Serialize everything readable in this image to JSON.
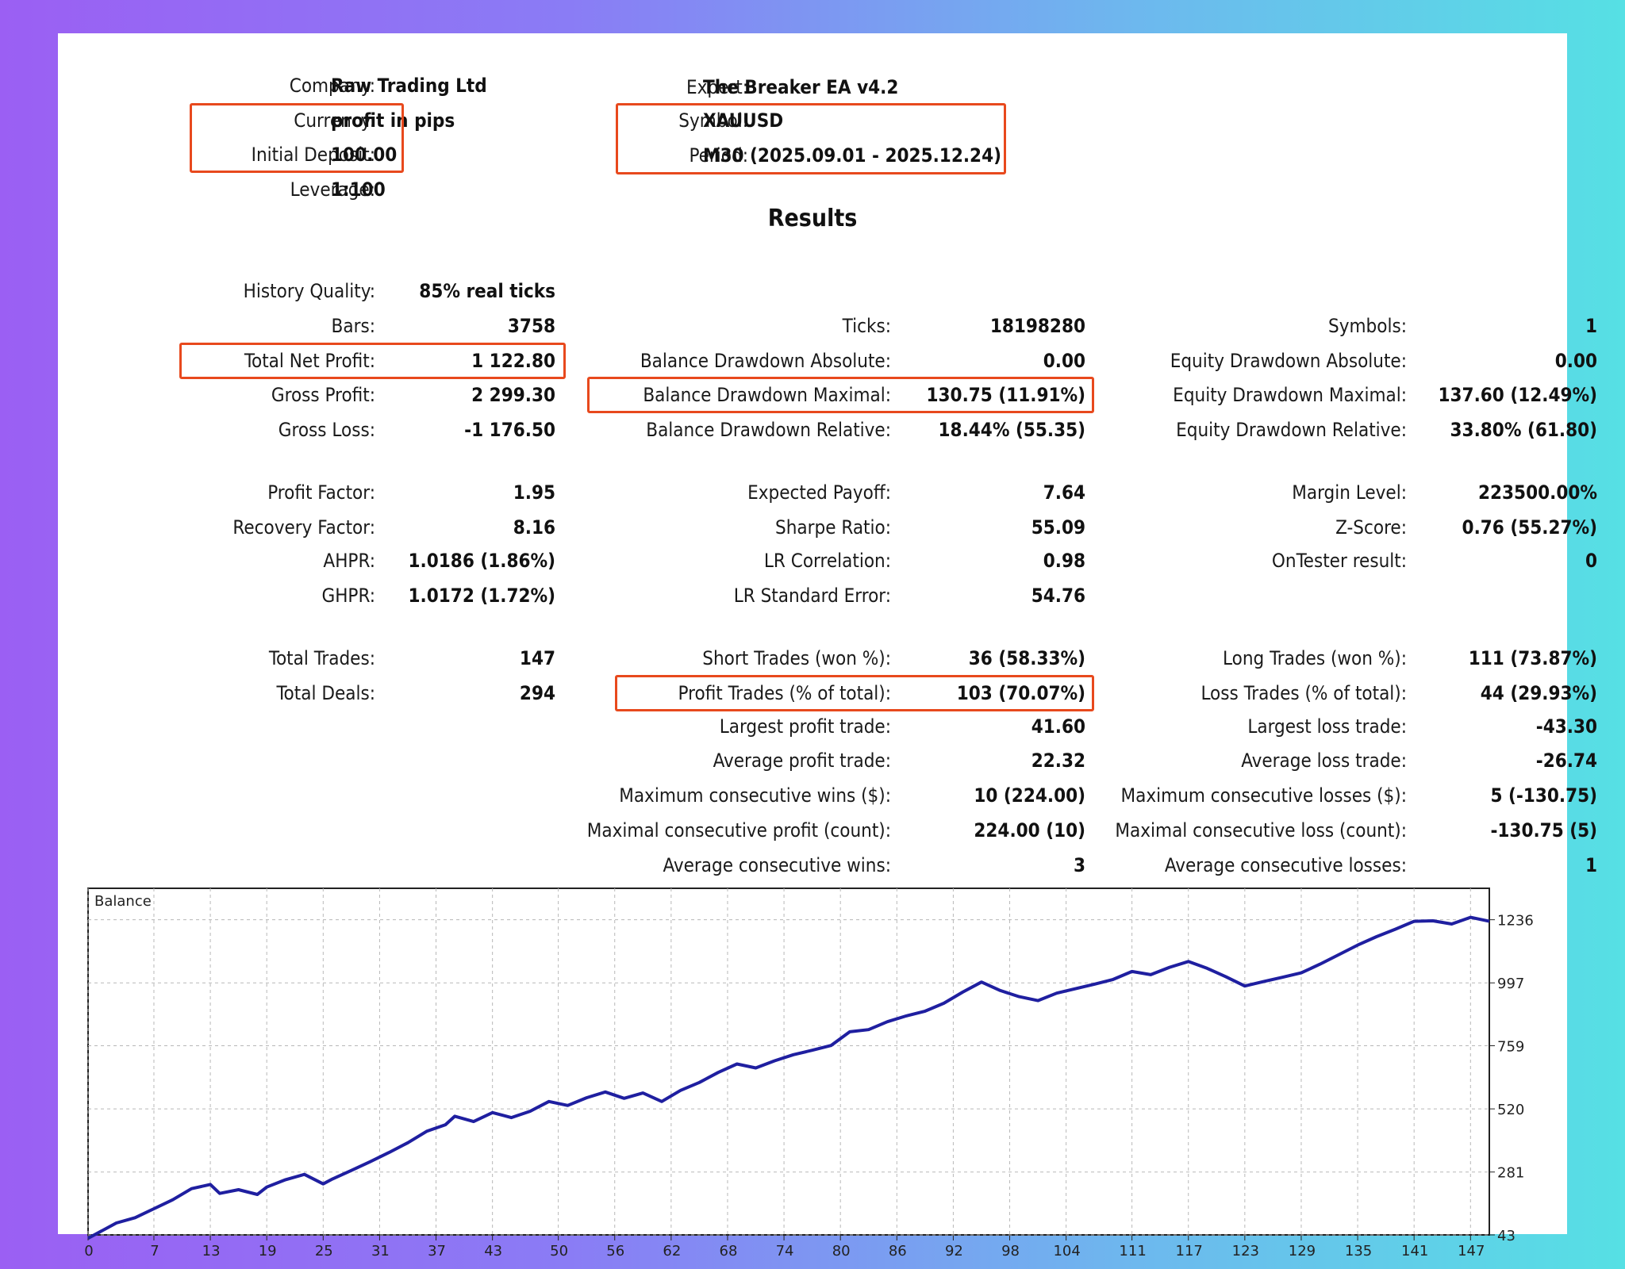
{
  "header": {
    "company": {
      "label": "Company:",
      "value": "Raw Trading Ltd"
    },
    "currency": {
      "label": "Currency:",
      "value": "profit in pips"
    },
    "deposit": {
      "label": "Initial Deposit:",
      "value": "100.00"
    },
    "leverage": {
      "label": "Leverage:",
      "value": "1:100"
    },
    "expert": {
      "label": "Expert:",
      "value": "The Breaker EA v4.2"
    },
    "symbol": {
      "label": "Symbol:",
      "value": "XAUUSD"
    },
    "period": {
      "label": "Period:",
      "value": "M30 (2025.09.01 - 2025.12.24)"
    }
  },
  "results_title": "Results",
  "col1": [
    {
      "label": "History Quality:",
      "value": "85% real ticks"
    },
    {
      "label": "Bars:",
      "value": "3758"
    },
    {
      "label": "Total Net Profit:",
      "value": "1 122.80"
    },
    {
      "label": "Gross Profit:",
      "value": "2 299.30"
    },
    {
      "label": "Gross Loss:",
      "value": "-1 176.50"
    },
    {
      "label": "Profit Factor:",
      "value": "1.95"
    },
    {
      "label": "Recovery Factor:",
      "value": "8.16"
    },
    {
      "label": "AHPR:",
      "value": "1.0186 (1.86%)"
    },
    {
      "label": "GHPR:",
      "value": "1.0172 (1.72%)"
    },
    {
      "label": "Total Trades:",
      "value": "147"
    },
    {
      "label": "Total Deals:",
      "value": "294"
    }
  ],
  "col2": [
    {
      "label": "Ticks:",
      "value": "18198280"
    },
    {
      "label": "Balance Drawdown Absolute:",
      "value": "0.00"
    },
    {
      "label": "Balance Drawdown Maximal:",
      "value": "130.75 (11.91%)"
    },
    {
      "label": "Balance Drawdown Relative:",
      "value": "18.44% (55.35)"
    },
    {
      "label": "Expected Payoff:",
      "value": "7.64"
    },
    {
      "label": "Sharpe Ratio:",
      "value": "55.09"
    },
    {
      "label": "LR Correlation:",
      "value": "0.98"
    },
    {
      "label": "LR Standard Error:",
      "value": "54.76"
    },
    {
      "label": "Short Trades (won %):",
      "value": "36 (58.33%)"
    },
    {
      "label": "Profit Trades (% of total):",
      "value": "103 (70.07%)"
    },
    {
      "label": "Largest profit trade:",
      "value": "41.60"
    },
    {
      "label": "Average profit trade:",
      "value": "22.32"
    },
    {
      "label": "Maximum consecutive wins ($):",
      "value": "10 (224.00)"
    },
    {
      "label": "Maximal consecutive profit (count):",
      "value": "224.00 (10)"
    },
    {
      "label": "Average consecutive wins:",
      "value": "3"
    }
  ],
  "col3": [
    {
      "label": "Symbols:",
      "value": "1"
    },
    {
      "label": "Equity Drawdown Absolute:",
      "value": "0.00"
    },
    {
      "label": "Equity Drawdown Maximal:",
      "value": "137.60 (12.49%)"
    },
    {
      "label": "Equity Drawdown Relative:",
      "value": "33.80% (61.80)"
    },
    {
      "label": "Margin Level:",
      "value": "223500.00%"
    },
    {
      "label": "Z-Score:",
      "value": "0.76 (55.27%)"
    },
    {
      "label": "OnTester result:",
      "value": "0"
    },
    {
      "label": "Long Trades (won %):",
      "value": "111 (73.87%)"
    },
    {
      "label": "Loss Trades (% of total):",
      "value": "44 (29.93%)"
    },
    {
      "label": "Largest loss trade:",
      "value": "-43.30"
    },
    {
      "label": "Average loss trade:",
      "value": "-26.74"
    },
    {
      "label": "Maximum consecutive losses ($):",
      "value": "5 (-130.75)"
    },
    {
      "label": "Maximal consecutive loss (count):",
      "value": "-130.75 (5)"
    },
    {
      "label": "Average consecutive losses:",
      "value": "1"
    }
  ],
  "colors": {
    "highlight": "#e8491d",
    "line": "#1f1fa0",
    "grid": "#b8b8b8"
  },
  "chart_data": {
    "type": "line",
    "title": "Balance",
    "x_ticks": [
      "0",
      "7",
      "13",
      "19",
      "25",
      "31",
      "37",
      "43",
      "50",
      "56",
      "62",
      "68",
      "74",
      "80",
      "86",
      "92",
      "98",
      "104",
      "111",
      "117",
      "123",
      "129",
      "135",
      "141",
      "147"
    ],
    "y_ticks": [
      "43",
      "281",
      "520",
      "759",
      "997",
      "1236"
    ],
    "xlim": [
      0,
      149
    ],
    "ylim": [
      43,
      1355
    ],
    "grid": true,
    "series": [
      {
        "x": [
          0,
          3,
          5,
          7,
          9,
          11,
          13,
          14,
          16,
          18,
          19,
          21,
          23,
          25,
          26,
          28,
          30,
          32,
          34,
          36,
          38,
          39,
          41,
          43,
          45,
          47,
          49,
          51,
          53,
          55,
          57,
          59,
          61,
          63,
          65,
          67,
          69,
          71,
          73,
          75,
          77,
          79,
          81,
          83,
          85,
          87,
          89,
          91,
          93,
          95,
          97,
          99,
          101,
          103,
          105,
          107,
          109,
          111,
          113,
          115,
          117,
          119,
          121,
          123,
          125,
          127,
          129,
          131,
          133,
          135,
          137,
          139,
          141,
          143,
          145,
          147,
          149
        ],
        "y": [
          30,
          88,
          108,
          142,
          176,
          218,
          234,
          200,
          214,
          196,
          224,
          252,
          272,
          236,
          255,
          287,
          320,
          355,
          392,
          435,
          460,
          492,
          472,
          506,
          487,
          511,
          548,
          533,
          562,
          584,
          560,
          580,
          548,
          590,
          620,
          658,
          690,
          675,
          702,
          725,
          742,
          760,
          812,
          820,
          850,
          872,
          890,
          920,
          962,
          1000,
          968,
          945,
          930,
          958,
          975,
          992,
          1010,
          1040,
          1028,
          1056,
          1078,
          1052,
          1020,
          985,
          1002,
          1018,
          1035,
          1068,
          1104,
          1140,
          1172,
          1200,
          1230,
          1232,
          1220,
          1245,
          1230
        ]
      }
    ]
  }
}
